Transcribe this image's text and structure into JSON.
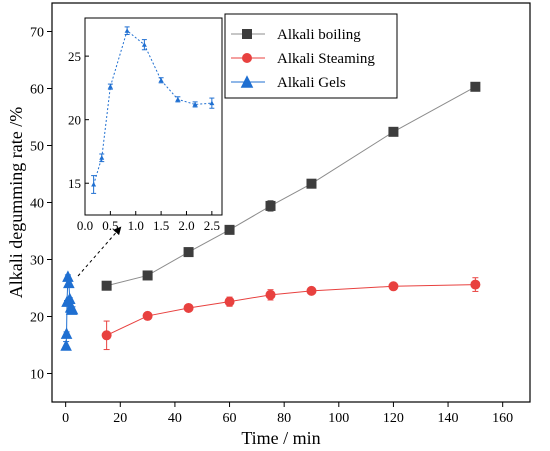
{
  "chart_data": {
    "type": "scatter",
    "xlabel": "Time / min",
    "ylabel": "Alkali degumming rate /%",
    "xlim": [
      -5,
      170
    ],
    "ylim": [
      5,
      75
    ],
    "xticks": [
      0,
      20,
      40,
      60,
      80,
      100,
      120,
      140,
      160
    ],
    "yticks": [
      10,
      20,
      30,
      40,
      50,
      60,
      70
    ],
    "legend_position": "top-right",
    "series": [
      {
        "name": "Alkali boiling",
        "marker": "square",
        "color": "#3d3d3d",
        "line_color": "#8c8c8c",
        "x": [
          15,
          30,
          45,
          60,
          75,
          90,
          120,
          150
        ],
        "y": [
          25.4,
          27.2,
          31.3,
          35.2,
          39.4,
          43.3,
          52.4,
          60.3
        ],
        "error": [
          0.5,
          0.5,
          0.6,
          0.5,
          0.9,
          0.5,
          0.5,
          0.5
        ]
      },
      {
        "name": "Alkali Steaming",
        "marker": "circle",
        "color": "#e8413f",
        "line_color": "#e8413f",
        "x": [
          15,
          30,
          45,
          60,
          75,
          90,
          120,
          150
        ],
        "y": [
          16.7,
          20.1,
          21.5,
          22.6,
          23.8,
          24.5,
          25.3,
          25.6
        ],
        "error": [
          2.5,
          0.6,
          0.5,
          0.8,
          0.9,
          0.5,
          0.5,
          1.2
        ]
      },
      {
        "name": "Alkali Gels",
        "marker": "triangle",
        "color": "#1f6fd1",
        "line_color": "#1f6fd1",
        "x": [
          0.17,
          0.33,
          0.5,
          0.83,
          1.17,
          1.5,
          1.83,
          2.17,
          2.5
        ],
        "y": [
          14.9,
          17.0,
          22.6,
          27.0,
          25.9,
          23.1,
          21.6,
          21.2,
          21.3
        ],
        "error": [
          0.7,
          0.3,
          0.2,
          0.3,
          0.4,
          0.2,
          0.2,
          0.2,
          0.4
        ]
      }
    ],
    "inset": {
      "xlim": [
        0,
        2.7
      ],
      "ylim": [
        12.5,
        28
      ],
      "xticks": [
        "0.0",
        "0.5",
        "1.0",
        "1.5",
        "2.0",
        "2.5"
      ],
      "yticks": [
        "15",
        "20",
        "25"
      ],
      "series": "Alkali Gels",
      "style": "dotted-line"
    }
  }
}
